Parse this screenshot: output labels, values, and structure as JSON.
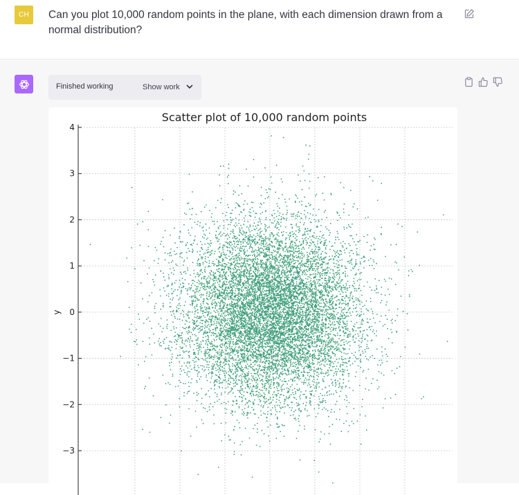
{
  "user_message": {
    "avatar_initials": "CH",
    "text": "Can you plot 10,000 random points in the plane, with each dimension drawn from a normal distribution?",
    "edit_icon": "pencil-square-icon"
  },
  "assistant": {
    "avatar_icon": "openai-logo-icon",
    "status_text": "Finished working",
    "show_work_label": "Show work",
    "show_work_icon": "chevron-down-icon",
    "action_icons": [
      "clipboard-icon",
      "thumbs-up-icon",
      "thumbs-down-icon"
    ]
  },
  "chart_data": {
    "type": "scatter",
    "title": "Scatter plot of 10,000 random points",
    "xlabel": "",
    "ylabel": "y",
    "n_points": 10000,
    "distribution": "standard normal in x and y",
    "x_mean": 0,
    "y_mean": 0,
    "x_std": 1,
    "y_std": 1,
    "xlim": [
      -3.9,
      3.9
    ],
    "ylim": [
      -3.7,
      4.1
    ],
    "yticks": [
      4,
      3,
      2,
      1,
      0,
      -1,
      -2,
      -3
    ],
    "ytick_labels": [
      "4",
      "3",
      "2",
      "1",
      "0",
      "−1",
      "−2",
      "−3"
    ],
    "grid": true,
    "point_color": "#3f9f7a"
  }
}
